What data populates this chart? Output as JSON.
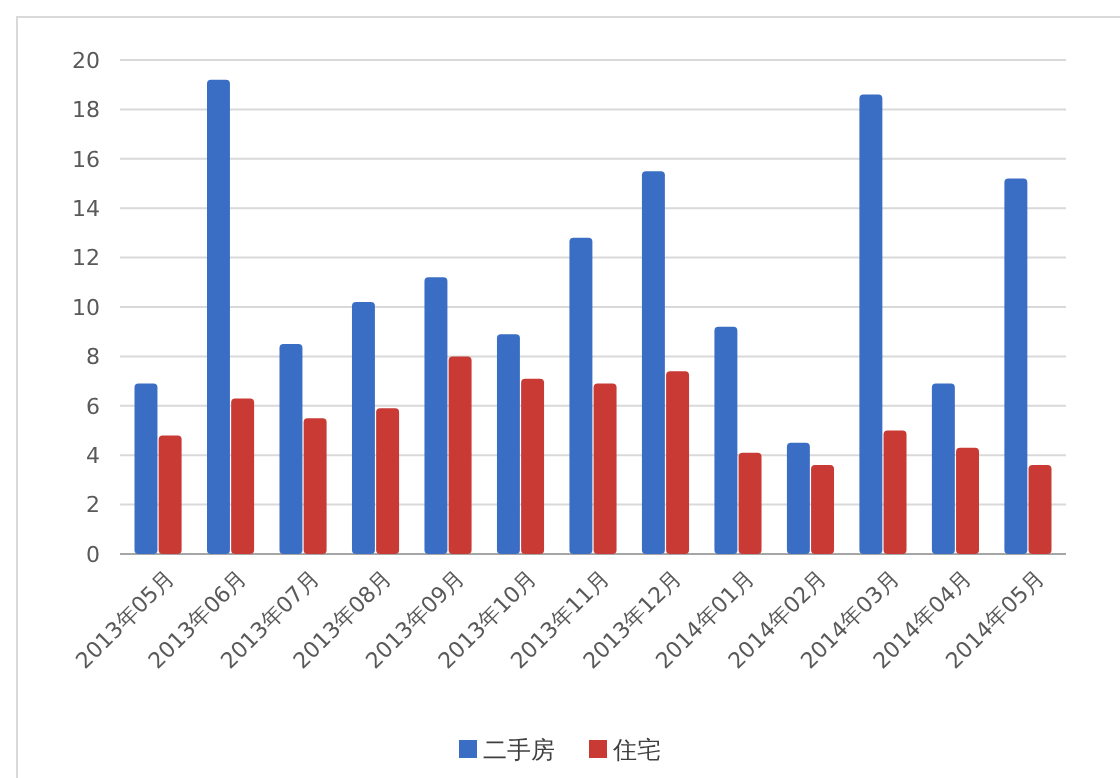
{
  "chart_data": {
    "type": "bar",
    "categories": [
      "2013年05月",
      "2013年06月",
      "2013年07月",
      "2013年08月",
      "2013年09月",
      "2013年10月",
      "2013年11月",
      "2013年12月",
      "2014年01月",
      "2014年02月",
      "2014年03月",
      "2014年04月",
      "2014年05月"
    ],
    "series": [
      {
        "name": "二手房",
        "color": "#3a6ec4",
        "values": [
          6.9,
          19.2,
          8.5,
          10.2,
          11.2,
          8.9,
          12.8,
          15.5,
          9.2,
          4.5,
          18.6,
          6.9,
          15.2
        ]
      },
      {
        "name": "住宅",
        "color": "#c93a34",
        "values": [
          4.8,
          6.3,
          5.5,
          5.9,
          8.0,
          7.1,
          6.9,
          7.4,
          4.1,
          3.6,
          5.0,
          4.3,
          3.6
        ]
      }
    ],
    "ylim": [
      0,
      20
    ],
    "yticks": [
      0,
      2,
      4,
      6,
      8,
      10,
      12,
      14,
      16,
      18,
      20
    ],
    "grid": "y",
    "legend": "bottom"
  }
}
